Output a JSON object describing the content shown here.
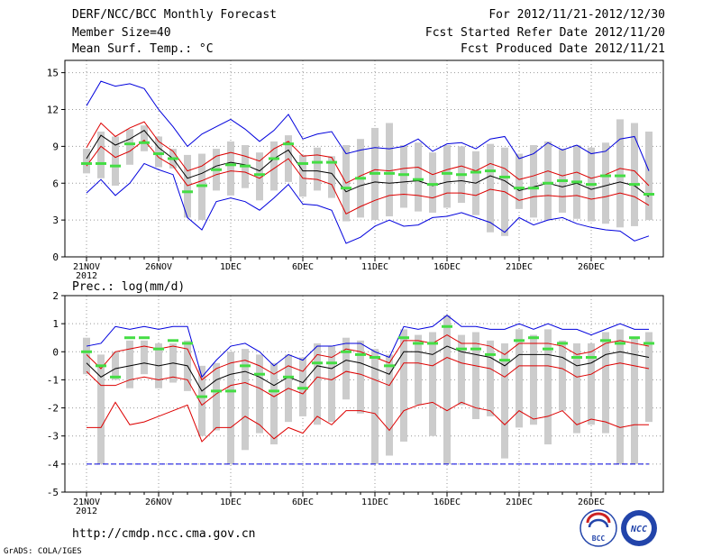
{
  "header": {
    "title": "DERF/NCC/BCC Monthly Forecast",
    "member_size": "Member Size=40",
    "variable": "Mean Surf. Temp.: °C",
    "period": "For 2012/11/21-2012/12/30",
    "started": "Fcst Started Refer Date 2012/11/20",
    "produced": "Fcst Produced Date 2012/11/21"
  },
  "footer": {
    "url": "http://cmdp.ncc.cma.gov.cn",
    "grads": "GrADS: COLA/IGES",
    "logo_bcc": "BCC",
    "logo_ncc": "NCC"
  },
  "colors": {
    "max": "#0000dd",
    "pct": "#dd0000",
    "mean": "#000000",
    "green": "#44dd44",
    "box": "#cccccc"
  },
  "chart_data": [
    {
      "type": "line",
      "name": "temperature",
      "title": "Mean Surf. Temp.: °C",
      "ylim": [
        0,
        16
      ],
      "yticks": [
        0,
        3,
        6,
        9,
        12,
        15
      ],
      "xticks": [
        {
          "day": 1,
          "label": "21NOV",
          "sub": "2012"
        },
        {
          "day": 6,
          "label": "26NOV"
        },
        {
          "day": 11,
          "label": "1DEC"
        },
        {
          "day": 16,
          "label": "6DEC"
        },
        {
          "day": 21,
          "label": "11DEC"
        },
        {
          "day": 26,
          "label": "16DEC"
        },
        {
          "day": 31,
          "label": "21DEC"
        },
        {
          "day": 36,
          "label": "26DEC"
        }
      ],
      "x": [
        1,
        2,
        3,
        4,
        5,
        6,
        7,
        8,
        9,
        10,
        11,
        12,
        13,
        14,
        15,
        16,
        17,
        18,
        19,
        20,
        21,
        22,
        23,
        24,
        25,
        26,
        27,
        28,
        29,
        30,
        31,
        32,
        33,
        34,
        35,
        36,
        37,
        38,
        39,
        40
      ],
      "series": [
        {
          "name": "max",
          "color": "#0000dd",
          "values": [
            12.3,
            14.3,
            13.9,
            14.1,
            13.7,
            12.0,
            10.6,
            9.0,
            10.0,
            10.6,
            11.2,
            10.4,
            9.4,
            10.3,
            11.6,
            9.6,
            10.0,
            10.2,
            8.4,
            8.7,
            8.9,
            8.8,
            9.0,
            9.6,
            8.6,
            9.2,
            9.3,
            8.8,
            9.6,
            9.8,
            8.0,
            8.4,
            9.3,
            8.7,
            9.1,
            8.4,
            8.6,
            9.6,
            9.8,
            7.0
          ]
        },
        {
          "name": "p90",
          "color": "#dd0000",
          "values": [
            8.9,
            10.9,
            9.8,
            10.5,
            11.0,
            9.4,
            8.6,
            7.0,
            7.4,
            8.2,
            8.5,
            8.2,
            7.8,
            8.8,
            9.4,
            8.2,
            8.3,
            8.1,
            6.0,
            6.6,
            7.1,
            7.0,
            7.2,
            7.3,
            6.7,
            7.1,
            7.4,
            7.0,
            7.6,
            7.2,
            6.3,
            6.6,
            7.0,
            6.6,
            6.9,
            6.4,
            6.7,
            7.2,
            7.0,
            5.8
          ]
        },
        {
          "name": "mean",
          "color": "#000000",
          "values": [
            8.0,
            9.9,
            9.1,
            9.6,
            10.3,
            8.9,
            8.0,
            6.4,
            6.8,
            7.4,
            7.7,
            7.5,
            7.0,
            8.0,
            8.7,
            7.0,
            7.0,
            6.8,
            5.3,
            5.8,
            6.1,
            6.0,
            6.1,
            6.2,
            5.8,
            6.1,
            6.2,
            6.0,
            6.6,
            6.2,
            5.4,
            5.7,
            6.0,
            5.7,
            6.0,
            5.5,
            5.8,
            6.1,
            5.8,
            4.9
          ]
        },
        {
          "name": "p10",
          "color": "#dd0000",
          "values": [
            7.4,
            9.0,
            8.1,
            8.6,
            9.5,
            8.1,
            7.4,
            5.8,
            6.2,
            6.7,
            7.0,
            6.9,
            6.4,
            7.2,
            8.0,
            6.4,
            6.3,
            5.9,
            3.5,
            4.1,
            4.6,
            5.0,
            5.1,
            5.0,
            4.8,
            5.2,
            5.2,
            5.0,
            5.5,
            5.3,
            4.6,
            4.9,
            5.0,
            4.9,
            5.0,
            4.7,
            4.9,
            5.2,
            4.9,
            4.2
          ]
        },
        {
          "name": "min",
          "color": "#0000dd",
          "values": [
            5.2,
            6.3,
            5.0,
            6.0,
            7.6,
            7.1,
            6.7,
            3.2,
            2.2,
            4.5,
            4.8,
            4.5,
            3.8,
            4.8,
            5.9,
            4.3,
            4.2,
            3.8,
            1.1,
            1.6,
            2.5,
            3.0,
            2.5,
            2.6,
            3.2,
            3.3,
            3.6,
            3.2,
            2.8,
            2.0,
            3.2,
            2.6,
            3.0,
            3.2,
            2.7,
            2.4,
            2.2,
            2.1,
            1.3,
            1.7
          ]
        }
      ],
      "boxes": {
        "upper": [
          8.8,
          10.2,
          9.8,
          10.4,
          10.7,
          9.8,
          8.8,
          8.3,
          8.4,
          8.8,
          9.4,
          9.1,
          8.5,
          9.4,
          9.9,
          8.3,
          8.9,
          8.2,
          9.1,
          9.6,
          10.5,
          10.9,
          9.1,
          9.3,
          8.5,
          9.1,
          9.0,
          8.6,
          9.2,
          8.9,
          8.4,
          9.1,
          9.4,
          8.8,
          9.1,
          8.9,
          9.3,
          11.2,
          10.9,
          10.2
        ],
        "lower": [
          6.8,
          6.4,
          5.8,
          7.5,
          8.6,
          7.3,
          7.2,
          3.2,
          3.0,
          5.4,
          5.0,
          5.6,
          4.6,
          5.4,
          6.1,
          4.9,
          5.4,
          4.8,
          2.9,
          3.2,
          3.0,
          3.3,
          4.0,
          3.7,
          3.6,
          4.0,
          4.4,
          3.4,
          2.0,
          1.7,
          3.9,
          3.2,
          3.0,
          3.6,
          3.1,
          2.9,
          2.7,
          2.4,
          2.5,
          3.0
        ],
        "green": [
          7.6,
          7.6,
          7.4,
          9.2,
          9.3,
          8.4,
          8.0,
          5.3,
          5.8,
          7.1,
          7.5,
          7.4,
          6.7,
          8.0,
          9.2,
          7.6,
          7.7,
          7.7,
          5.6,
          6.4,
          6.8,
          6.8,
          6.7,
          6.3,
          5.9,
          6.8,
          6.7,
          6.9,
          7.0,
          6.5,
          5.6,
          5.6,
          6.0,
          6.2,
          6.1,
          5.9,
          6.6,
          6.6,
          5.9,
          5.1
        ]
      }
    },
    {
      "type": "line",
      "name": "precipitation",
      "title": "Prec.: log(mm/d)",
      "ylim": [
        -5,
        2
      ],
      "yticks": [
        -5,
        -4,
        -3,
        -2,
        -1,
        0,
        1,
        2
      ],
      "xticks": [
        {
          "day": 1,
          "label": "21NOV",
          "sub": "2012"
        },
        {
          "day": 6,
          "label": "26NOV"
        },
        {
          "day": 11,
          "label": "1DEC"
        },
        {
          "day": 16,
          "label": "6DEC"
        },
        {
          "day": 21,
          "label": "11DEC"
        },
        {
          "day": 26,
          "label": "16DEC"
        },
        {
          "day": 31,
          "label": "21DEC"
        },
        {
          "day": 36,
          "label": "26DEC"
        }
      ],
      "x": [
        1,
        2,
        3,
        4,
        5,
        6,
        7,
        8,
        9,
        10,
        11,
        12,
        13,
        14,
        15,
        16,
        17,
        18,
        19,
        20,
        21,
        22,
        23,
        24,
        25,
        26,
        27,
        28,
        29,
        30,
        31,
        32,
        33,
        34,
        35,
        36,
        37,
        38,
        39,
        40
      ],
      "series": [
        {
          "name": "max",
          "color": "#0000dd",
          "values": [
            0.2,
            0.3,
            0.9,
            0.8,
            0.9,
            0.8,
            0.9,
            0.9,
            -0.9,
            -0.3,
            0.2,
            0.3,
            0.0,
            -0.5,
            -0.1,
            -0.3,
            0.2,
            0.2,
            0.3,
            0.3,
            0.0,
            -0.2,
            0.9,
            0.8,
            0.9,
            1.3,
            0.9,
            0.9,
            0.8,
            0.8,
            1.0,
            0.8,
            1.0,
            0.8,
            0.8,
            0.6,
            0.8,
            1.0,
            0.8,
            0.8
          ]
        },
        {
          "name": "p90",
          "color": "#dd0000",
          "values": [
            -0.1,
            -0.6,
            0.0,
            0.1,
            0.2,
            0.1,
            0.2,
            0.1,
            -1.0,
            -0.6,
            -0.4,
            -0.3,
            -0.5,
            -0.8,
            -0.5,
            -0.7,
            -0.1,
            -0.2,
            0.1,
            0.0,
            -0.2,
            -0.4,
            0.4,
            0.4,
            0.3,
            0.6,
            0.3,
            0.3,
            0.2,
            -0.1,
            0.3,
            0.3,
            0.3,
            0.2,
            -0.1,
            0.0,
            0.3,
            0.4,
            0.3,
            0.2
          ]
        },
        {
          "name": "mean",
          "color": "#000000",
          "values": [
            -0.4,
            -0.9,
            -0.6,
            -0.5,
            -0.4,
            -0.5,
            -0.4,
            -0.5,
            -1.4,
            -1.0,
            -0.8,
            -0.7,
            -0.9,
            -1.2,
            -0.9,
            -1.1,
            -0.5,
            -0.6,
            -0.3,
            -0.4,
            -0.6,
            -0.8,
            0.0,
            0.0,
            -0.1,
            0.2,
            0.0,
            -0.1,
            -0.2,
            -0.5,
            -0.1,
            -0.1,
            -0.1,
            -0.2,
            -0.5,
            -0.4,
            -0.1,
            0.0,
            -0.1,
            -0.2
          ]
        },
        {
          "name": "p10",
          "color": "#dd0000",
          "values": [
            -0.7,
            -1.2,
            -1.2,
            -1.0,
            -0.9,
            -1.0,
            -0.9,
            -1.0,
            -1.9,
            -1.5,
            -1.2,
            -1.1,
            -1.3,
            -1.6,
            -1.3,
            -1.5,
            -0.9,
            -1.0,
            -0.7,
            -0.8,
            -1.0,
            -1.2,
            -0.4,
            -0.4,
            -0.5,
            -0.2,
            -0.4,
            -0.5,
            -0.6,
            -0.9,
            -0.5,
            -0.5,
            -0.5,
            -0.6,
            -0.9,
            -0.8,
            -0.5,
            -0.4,
            -0.5,
            -0.6
          ]
        },
        {
          "name": "min",
          "color": "#dd0000",
          "values": [
            -2.7,
            -2.7,
            -1.8,
            -2.6,
            -2.5,
            -2.3,
            -2.1,
            -1.9,
            -3.2,
            -2.7,
            -2.7,
            -2.3,
            -2.6,
            -3.1,
            -2.7,
            -2.9,
            -2.3,
            -2.6,
            -2.1,
            -2.1,
            -2.2,
            -2.8,
            -2.1,
            -1.9,
            -1.8,
            -2.1,
            -1.8,
            -2.0,
            -2.1,
            -2.6,
            -2.1,
            -2.4,
            -2.3,
            -2.1,
            -2.6,
            -2.4,
            -2.5,
            -2.7,
            -2.6,
            -2.6
          ]
        },
        {
          "name": "floor",
          "color": "#0000dd",
          "values": [
            -4,
            -4,
            -4,
            -4,
            -4,
            -4,
            -4,
            -4,
            -4,
            -4,
            -4,
            -4,
            -4,
            -4,
            -4,
            -4,
            -4,
            -4,
            -4,
            -4,
            -4,
            -4,
            -4,
            -4,
            -4,
            -4,
            -4,
            -4,
            -4,
            -4,
            -4,
            -4,
            -4,
            -4,
            -4,
            -4,
            -4,
            -4,
            -4,
            -4
          ]
        }
      ],
      "boxes": {
        "upper": [
          0.5,
          -0.1,
          0.0,
          0.4,
          0.4,
          0.3,
          0.3,
          0.4,
          -0.5,
          -0.4,
          0.0,
          0.1,
          -0.1,
          -0.4,
          -0.1,
          -0.2,
          0.3,
          0.2,
          0.5,
          0.4,
          0.1,
          -0.1,
          0.8,
          0.6,
          0.7,
          1.3,
          0.6,
          0.7,
          0.4,
          0.3,
          0.8,
          0.6,
          0.8,
          0.4,
          0.3,
          0.3,
          0.7,
          0.8,
          0.5,
          0.7
        ],
        "lower": [
          -0.8,
          -4.0,
          -1.0,
          -1.3,
          -0.8,
          -1.3,
          -1.1,
          -1.4,
          -3.0,
          -2.8,
          -4.0,
          -3.5,
          -2.9,
          -3.3,
          -2.5,
          -2.3,
          -2.6,
          -2.5,
          -1.7,
          -2.2,
          -4.0,
          -3.7,
          -3.2,
          -1.9,
          -3.0,
          -4.0,
          -1.9,
          -2.4,
          -2.3,
          -3.8,
          -2.7,
          -2.6,
          -3.3,
          -2.1,
          -2.9,
          -2.6,
          -2.9,
          -4.0,
          -4.0,
          -2.5
        ],
        "green": [
          0.0,
          -0.5,
          -0.9,
          0.5,
          0.5,
          0.1,
          0.4,
          0.3,
          -1.6,
          -1.4,
          -1.4,
          -0.5,
          -0.8,
          -1.4,
          -0.9,
          -1.3,
          -0.4,
          -0.4,
          0.0,
          -0.1,
          -0.2,
          -0.5,
          0.5,
          0.3,
          0.3,
          0.9,
          0.1,
          0.1,
          -0.1,
          -0.3,
          0.4,
          0.5,
          0.1,
          0.3,
          -0.2,
          -0.2,
          0.4,
          0.3,
          0.5,
          0.3
        ]
      }
    }
  ]
}
